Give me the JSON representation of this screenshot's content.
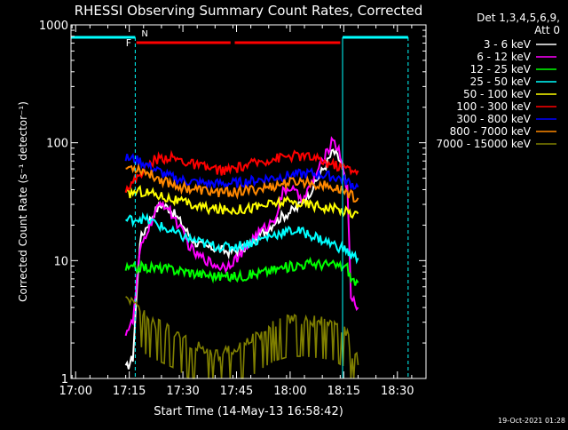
{
  "chart_data": {
    "type": "line",
    "title": "RHESSI Observing Summary Count Rates, Corrected",
    "xlabel": "Start Time (14-May-13 16:58:42)",
    "ylabel": "Corrected Count Rate (s⁻¹ detector⁻¹)",
    "yscale": "log",
    "xlim": [
      "16:58:42",
      "18:38:00"
    ],
    "ylim": [
      1,
      1000
    ],
    "x_ticks": [
      "17:00",
      "17:15",
      "17:30",
      "17:45",
      "18:00",
      "18:15",
      "18:30"
    ],
    "y_ticks": [
      "1",
      "10",
      "100",
      "1000"
    ],
    "timestamp": "19-Oct-2021 01:28",
    "legend_header": [
      "Det 1,3,4,5,6,9,",
      "Att 0"
    ],
    "legend_position": "top-right",
    "series": [
      {
        "name": "3 - 6 keV",
        "color": "#ffffff",
        "x": [
          "17:14",
          "17:16",
          "17:18",
          "17:20",
          "17:22",
          "17:24",
          "17:26",
          "17:28",
          "17:30",
          "17:32",
          "17:34",
          "17:36",
          "17:38",
          "17:40",
          "17:42",
          "17:44",
          "17:46",
          "17:48",
          "17:50",
          "17:52",
          "17:54",
          "17:56",
          "17:58",
          "18:00",
          "18:02",
          "18:04",
          "18:06",
          "18:08",
          "18:10",
          "18:12",
          "18:14",
          "18:16"
        ],
        "values": [
          1.2,
          1.5,
          15,
          20,
          26,
          30,
          28,
          24,
          20,
          16,
          14,
          13,
          13,
          12.5,
          12,
          12,
          12.5,
          13,
          15,
          17,
          19,
          22,
          24,
          26,
          28,
          34,
          40,
          52,
          65,
          85,
          70,
          40
        ]
      },
      {
        "name": "6 - 12 keV",
        "color": "#ff00ff",
        "x": [
          "17:14",
          "17:16",
          "17:18",
          "17:20",
          "17:22",
          "17:24",
          "17:26",
          "17:28",
          "17:30",
          "17:32",
          "17:34",
          "17:36",
          "17:38",
          "17:40",
          "17:42",
          "17:44",
          "17:46",
          "17:48",
          "17:50",
          "17:52",
          "17:54",
          "17:56",
          "17:58",
          "18:00",
          "18:02",
          "18:04",
          "18:06",
          "18:08",
          "18:10",
          "18:12",
          "18:14",
          "18:16",
          "18:17",
          "18:19"
        ],
        "values": [
          2.5,
          3,
          12,
          18,
          24,
          32,
          27,
          22,
          17,
          13,
          11,
          10.5,
          9.5,
          9,
          9,
          10,
          11,
          13,
          16,
          18,
          20,
          24,
          38,
          42,
          36,
          34,
          45,
          60,
          80,
          110,
          80,
          40,
          5,
          4
        ]
      },
      {
        "name": "12 - 25 keV",
        "color": "#00ff00",
        "x": [
          "17:14",
          "17:16",
          "17:18",
          "17:22",
          "17:26",
          "17:30",
          "17:34",
          "17:38",
          "17:42",
          "17:46",
          "17:50",
          "17:54",
          "17:58",
          "18:02",
          "18:06",
          "18:10",
          "18:14",
          "18:16",
          "18:17",
          "18:19"
        ],
        "values": [
          8.5,
          8.6,
          8.8,
          8.7,
          8.5,
          8.2,
          7.8,
          7.5,
          7.3,
          7.4,
          7.7,
          8.2,
          8.7,
          9.2,
          9.5,
          9.3,
          9.0,
          8.8,
          7,
          6.5
        ]
      },
      {
        "name": "25 - 50 keV",
        "color": "#00ffff",
        "x": [
          "17:14",
          "17:16",
          "17:18",
          "17:22",
          "17:26",
          "17:30",
          "17:34",
          "17:38",
          "17:42",
          "17:46",
          "17:50",
          "17:54",
          "17:58",
          "18:02",
          "18:06",
          "18:10",
          "18:14",
          "18:16",
          "18:17",
          "18:19"
        ],
        "values": [
          22,
          22.5,
          23,
          21,
          18,
          16,
          14.5,
          13.5,
          13,
          13.5,
          14.5,
          16,
          17.5,
          18,
          16.5,
          14.5,
          13,
          12,
          11,
          10.5
        ]
      },
      {
        "name": "50 - 100 keV",
        "color": "#ffff00",
        "x": [
          "17:14",
          "17:16",
          "17:18",
          "17:22",
          "17:26",
          "17:30",
          "17:34",
          "17:38",
          "17:42",
          "17:46",
          "17:50",
          "17:54",
          "17:58",
          "18:02",
          "18:06",
          "18:10",
          "18:14",
          "18:16",
          "18:17",
          "18:19"
        ],
        "values": [
          36,
          38,
          39,
          37,
          34,
          31,
          29,
          27.5,
          27,
          27.5,
          28.5,
          30,
          31.5,
          31,
          30,
          28.5,
          27,
          26,
          25.5,
          25
        ]
      },
      {
        "name": "100 - 300 keV",
        "color": "#ff0000",
        "x": [
          "17:14",
          "17:16",
          "17:18",
          "17:22",
          "17:26",
          "17:30",
          "17:34",
          "17:38",
          "17:42",
          "17:46",
          "17:50",
          "17:54",
          "17:58",
          "18:02",
          "18:06",
          "18:10",
          "18:14",
          "18:16",
          "18:17",
          "18:19"
        ],
        "values": [
          42,
          45,
          55,
          72,
          76,
          70,
          64,
          60,
          58,
          62,
          67,
          72,
          76,
          78,
          75,
          68,
          63,
          61,
          60,
          58
        ]
      },
      {
        "name": "300 - 800 keV",
        "color": "#0000ff",
        "x": [
          "17:14",
          "17:16",
          "17:18",
          "17:22",
          "17:26",
          "17:30",
          "17:34",
          "17:38",
          "17:42",
          "17:46",
          "17:50",
          "17:54",
          "17:58",
          "18:02",
          "18:06",
          "18:10",
          "18:14",
          "18:16",
          "18:17",
          "18:19"
        ],
        "values": [
          74,
          73,
          70,
          60,
          52,
          48,
          46,
          45,
          45,
          46,
          48,
          50,
          52,
          54,
          55,
          53,
          50,
          47,
          45,
          42
        ]
      },
      {
        "name": "800 - 7000 keV",
        "color": "#ff8800",
        "x": [
          "17:14",
          "17:16",
          "17:18",
          "17:22",
          "17:26",
          "17:30",
          "17:34",
          "17:38",
          "17:42",
          "17:46",
          "17:50",
          "17:54",
          "17:58",
          "18:02",
          "18:06",
          "18:10",
          "18:14",
          "18:16",
          "18:17",
          "18:19"
        ],
        "values": [
          61,
          62,
          60,
          52,
          46,
          42,
          40,
          38.5,
          38,
          38.5,
          40,
          42,
          45,
          47,
          46,
          43,
          40,
          38,
          36,
          34
        ]
      },
      {
        "name": "7000 - 15000 keV",
        "color": "#808000",
        "x": [
          "17:14",
          "17:16",
          "17:18",
          "17:20",
          "17:24",
          "17:28",
          "17:32",
          "17:36",
          "17:40",
          "17:44",
          "17:48",
          "17:52",
          "17:56",
          "18:00",
          "18:04",
          "18:08",
          "18:12",
          "18:14",
          "18:16",
          "18:17",
          "18:19"
        ],
        "values": [
          4,
          4.5,
          3.5,
          2.8,
          2.5,
          2.2,
          1.8,
          1.6,
          1.4,
          1.6,
          1.8,
          2.2,
          2.6,
          2.8,
          2.8,
          2.7,
          2.6,
          2.4,
          2.2,
          1.4,
          1.3
        ]
      }
    ],
    "annotations": {
      "night_label": "N",
      "flare_label": "F",
      "night_intervals": [
        [
          "16:58:42",
          "17:16:40"
        ],
        [
          "18:14:40",
          "18:33:00"
        ]
      ],
      "flare_intervals": [
        [
          "17:17:00",
          "17:43:20"
        ],
        [
          "17:44:30",
          "18:14:00"
        ]
      ]
    }
  }
}
